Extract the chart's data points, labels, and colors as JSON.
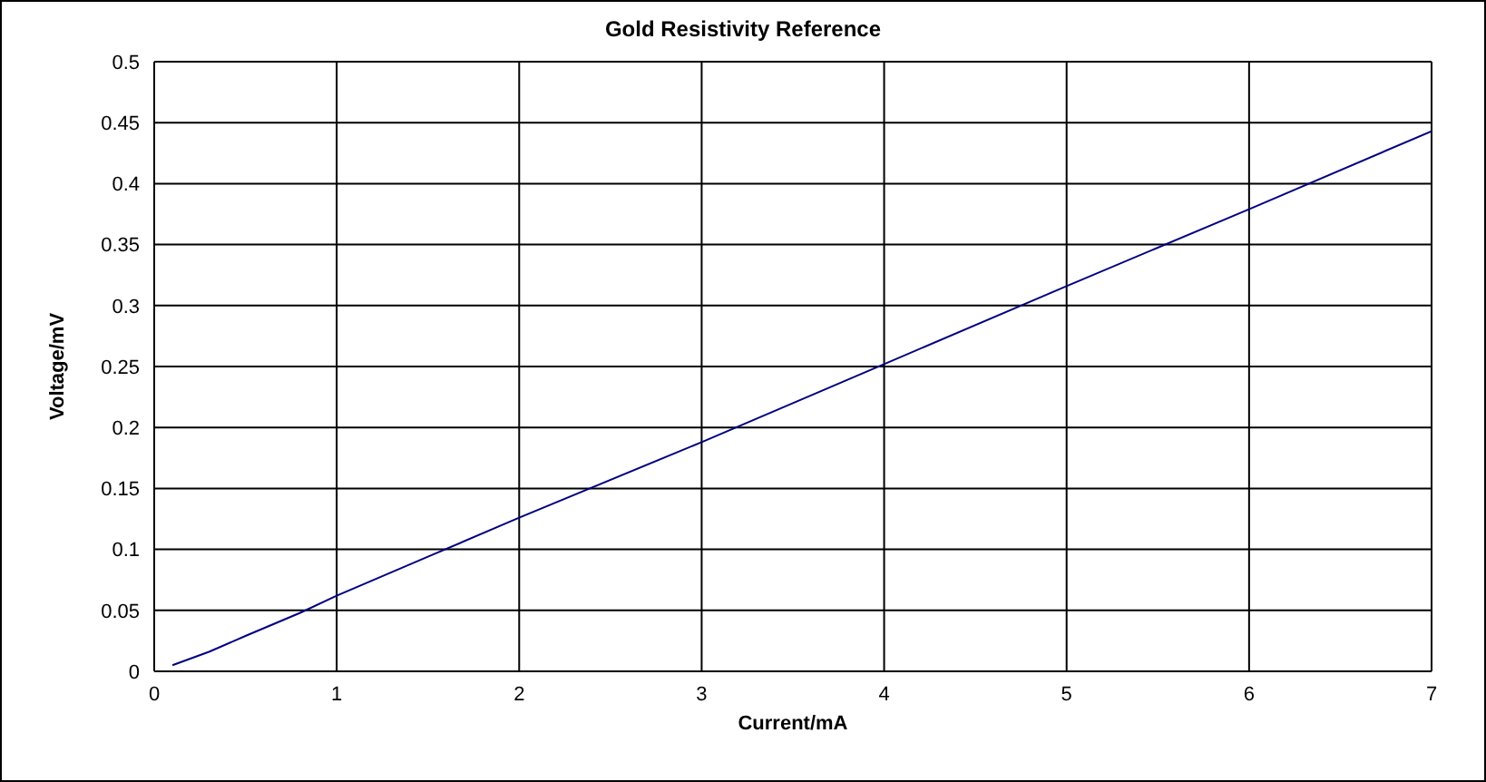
{
  "chart_data": {
    "type": "line",
    "title": "Gold Resistivity Reference",
    "xlabel": "Current/mA",
    "ylabel": "Voltage/mV",
    "x": [
      0.1,
      0.3,
      0.5,
      0.8,
      1,
      1.5,
      2,
      3,
      4,
      5,
      6,
      7
    ],
    "series": [
      {
        "color": "#000080",
        "values": [
          0.005,
          0.016,
          0.029,
          0.048,
          0.062,
          0.094,
          0.126,
          0.188,
          0.252,
          0.316,
          0.379,
          0.443
        ]
      }
    ],
    "xlim": [
      0,
      7
    ],
    "xticks": [
      0,
      1,
      2,
      3,
      4,
      5,
      6,
      7
    ],
    "ylim": [
      0,
      0.5
    ],
    "yticks": [
      0,
      0.05,
      0.1,
      0.15,
      0.2,
      0.25,
      0.3,
      0.35,
      0.4,
      0.45,
      0.5
    ],
    "grid": true,
    "legend": false,
    "marker": "none",
    "line_style": "solid"
  }
}
